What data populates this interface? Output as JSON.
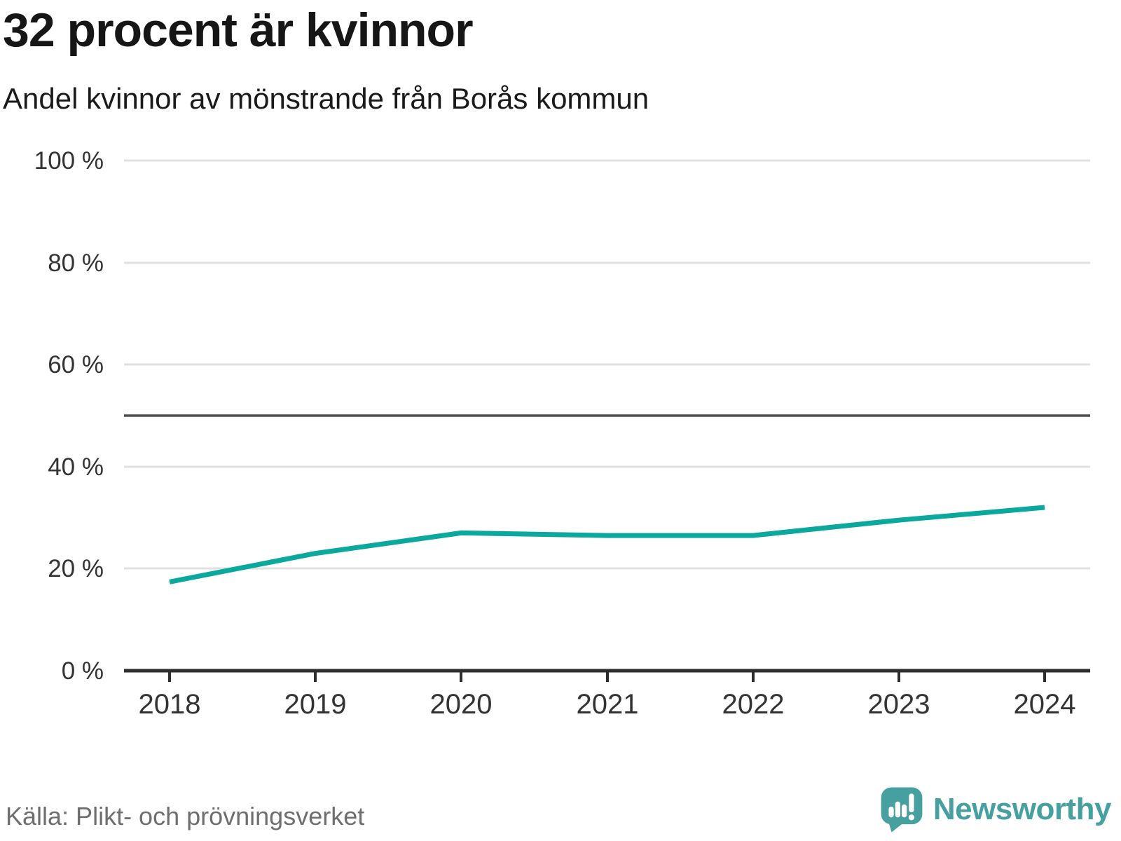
{
  "header": {
    "title": "32 procent är kvinnor",
    "subtitle": "Andel kvinnor av mönstrande från Borås kommun"
  },
  "footer": {
    "source": "Källa: Plikt- och prövningsverket",
    "brand": "Newsworthy"
  },
  "colors": {
    "line": "#0ba89d",
    "reference_line": "#4f4f4f",
    "grid": "#e0e0e0",
    "axis": "#2e2e2e",
    "tick_text": "#333333",
    "source_text": "#6e6e6e",
    "brand_teal": "#47a0a0"
  },
  "chart_data": {
    "type": "line",
    "title": "32 procent är kvinnor",
    "subtitle": "Andel kvinnor av mönstrande från Borås kommun",
    "categories": [
      "2018",
      "2019",
      "2020",
      "2021",
      "2022",
      "2023",
      "2024"
    ],
    "series": [
      {
        "name": "Andel kvinnor av mönstrande, Borås kommun",
        "values": [
          17.4,
          23,
          27,
          26.5,
          26.5,
          29.5,
          32
        ]
      }
    ],
    "unit": "%",
    "ylim": [
      0,
      100
    ],
    "y_ticks": [
      {
        "value": 0,
        "label": "0 %"
      },
      {
        "value": 20,
        "label": "20 %"
      },
      {
        "value": 40,
        "label": "40 %"
      },
      {
        "value": 60,
        "label": "60 %"
      },
      {
        "value": 80,
        "label": "80 %"
      },
      {
        "value": 100,
        "label": "100 %"
      }
    ],
    "reference_line": 50,
    "grid": true,
    "legend": false,
    "xlabel": "",
    "ylabel": ""
  }
}
